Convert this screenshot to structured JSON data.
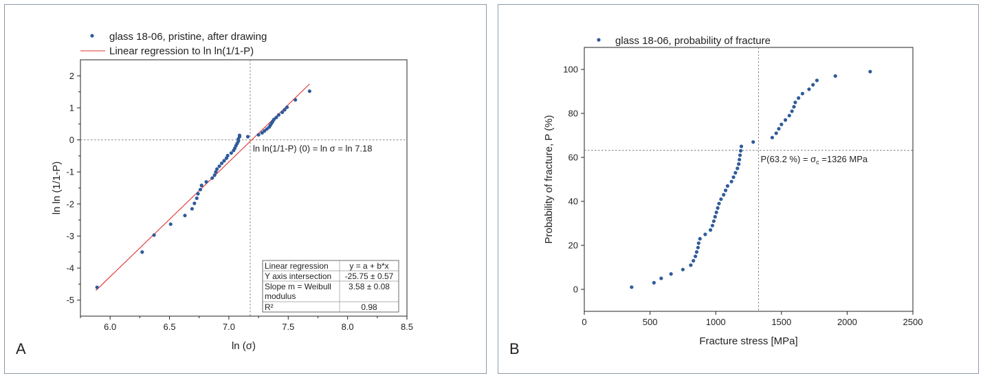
{
  "chart_data": [
    {
      "panel_label": "A",
      "type": "scatter",
      "legend": [
        {
          "label": "glass 18-06, pristine, after drawing",
          "marker": "dot"
        },
        {
          "label": "Linear regression to ln ln(1/1-P)",
          "marker": "line"
        }
      ],
      "xlabel": "ln (σ)",
      "ylabel": "ln ln (1/1-P)",
      "xlim": [
        5.75,
        8.5
      ],
      "ylim": [
        -5.5,
        2.5
      ],
      "x_ticks": [
        6.0,
        6.5,
        7.0,
        7.5,
        8.0,
        8.5
      ],
      "x_tick_labels": [
        "6.0",
        "6.5",
        "7.0",
        "7.5",
        "8.0",
        "8.5"
      ],
      "y_ticks": [
        2,
        1,
        0,
        -1,
        -2,
        -3,
        -4,
        -5
      ],
      "y_tick_labels": [
        "2",
        "1",
        "0",
        "-1",
        "-2",
        "-3",
        "-4",
        "-5"
      ],
      "ref_lines": {
        "vertical_x": 7.18,
        "horizontal_y": 0
      },
      "annotation": "ln ln(1/1-P) (0) = ln σ = ln 7.18",
      "fit_line": {
        "intercept": -25.75,
        "slope": 3.58,
        "x_range": [
          5.88,
          7.68
        ]
      },
      "series": [
        {
          "name": "glass 18-06, pristine, after drawing",
          "color": "#2f5b9a",
          "x": [
            5.89,
            6.27,
            6.37,
            6.51,
            6.63,
            6.69,
            6.71,
            6.73,
            6.74,
            6.76,
            6.77,
            6.81,
            6.86,
            6.88,
            6.89,
            6.9,
            6.92,
            6.94,
            6.96,
            6.98,
            6.99,
            7.02,
            7.04,
            7.05,
            7.06,
            7.07,
            7.08,
            7.08,
            7.09,
            7.09,
            7.16,
            7.25,
            7.28,
            7.3,
            7.32,
            7.34,
            7.35,
            7.36,
            7.37,
            7.38,
            7.4,
            7.42,
            7.45,
            7.47,
            7.49,
            7.56,
            7.68
          ],
          "y": [
            -4.6,
            -3.5,
            -2.97,
            -2.63,
            -2.36,
            -2.15,
            -1.98,
            -1.82,
            -1.68,
            -1.55,
            -1.42,
            -1.31,
            -1.19,
            -1.1,
            -1.0,
            -0.91,
            -0.82,
            -0.73,
            -0.65,
            -0.57,
            -0.49,
            -0.41,
            -0.33,
            -0.26,
            -0.18,
            -0.11,
            -0.04,
            0.03,
            0.1,
            0.14,
            0.1,
            0.16,
            0.22,
            0.28,
            0.34,
            0.4,
            0.46,
            0.52,
            0.58,
            0.64,
            0.7,
            0.78,
            0.86,
            0.94,
            1.02,
            1.25,
            1.52
          ]
        }
      ],
      "regression_table": {
        "rows": [
          [
            "Linear regression",
            "y = a + b*x"
          ],
          [
            "Y axis intersection",
            "-25.75 ± 0.57"
          ],
          [
            "Slope m = Weibull modulus",
            "3.58 ± 0.08"
          ],
          [
            "R²",
            "0.98"
          ]
        ]
      }
    },
    {
      "panel_label": "B",
      "type": "scatter",
      "legend": [
        {
          "label": "glass 18-06, probability of fracture",
          "marker": "dot"
        }
      ],
      "xlabel": "Fracture stress [MPa]",
      "ylabel": "Probability of fracture, P (%)",
      "xlim": [
        0,
        2500
      ],
      "ylim": [
        -10,
        110
      ],
      "x_ticks": [
        0,
        500,
        1000,
        1500,
        2000,
        2500
      ],
      "x_tick_labels": [
        "0",
        "500",
        "1000",
        "1500",
        "2000",
        "2500"
      ],
      "y_ticks": [
        0,
        20,
        40,
        60,
        80,
        100
      ],
      "y_tick_labels": [
        "0",
        "20",
        "40",
        "60",
        "80",
        "100"
      ],
      "ref_lines": {
        "vertical_x": 1326,
        "horizontal_y": 63.2
      },
      "annotation": {
        "prefix": "P(63.2 %) = σ",
        "subscript": "c",
        "suffix": " =1326 MPa"
      },
      "series": [
        {
          "name": "glass 18-06, probability of fracture",
          "color": "#2f5b9a",
          "x": [
            360,
            530,
            585,
            660,
            750,
            810,
            830,
            845,
            855,
            865,
            870,
            880,
            920,
            960,
            975,
            985,
            995,
            1005,
            1015,
            1025,
            1040,
            1060,
            1075,
            1090,
            1120,
            1135,
            1150,
            1165,
            1175,
            1180,
            1185,
            1190,
            1195,
            1285,
            1430,
            1460,
            1480,
            1500,
            1530,
            1560,
            1580,
            1595,
            1605,
            1630,
            1660,
            1710,
            1740,
            1770,
            1910,
            2175
          ],
          "y": [
            1,
            3,
            5,
            7,
            9,
            11,
            13,
            15,
            17,
            19,
            21,
            23,
            25,
            27,
            29,
            31,
            33,
            35,
            37,
            39,
            41,
            43,
            45,
            47,
            49,
            51,
            53,
            55,
            57,
            59,
            61,
            63,
            65,
            67,
            69,
            71,
            73,
            75,
            77,
            79,
            81,
            83,
            85,
            87,
            89,
            91,
            93,
            95,
            97,
            99
          ]
        }
      ]
    }
  ]
}
